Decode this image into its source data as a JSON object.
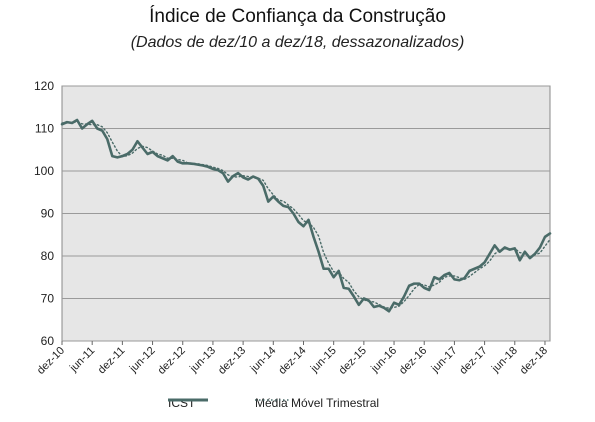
{
  "chart_data": {
    "type": "line",
    "title": "Índice de Confiança da Construção",
    "subtitle": "(Dados de dez/10 a dez/18, dessazonalizados)",
    "xlabel": "",
    "ylabel": "",
    "ylim": [
      60,
      120
    ],
    "y_ticks": [
      60,
      70,
      80,
      90,
      100,
      110,
      120
    ],
    "x_tick_labels": [
      "dez-10",
      "jun-11",
      "dez-11",
      "jun-12",
      "dez-12",
      "jun-13",
      "dez-13",
      "jun-14",
      "dez-14",
      "jun-15",
      "dez-15",
      "jun-16",
      "dez-16",
      "jun-17",
      "dez-17",
      "jun-18",
      "dez-18"
    ],
    "grid": true,
    "legend_position": "bottom",
    "colors": {
      "icst": "#4a6b68",
      "moving_average": "#4a6b68",
      "plot_background": "#e6e6e6",
      "grid": "#9a9a9a"
    },
    "series": [
      {
        "name": "ICST",
        "style": "solid",
        "values": [
          111.0,
          111.5,
          111.3,
          112.0,
          110.0,
          111.0,
          111.8,
          110.0,
          109.5,
          107.5,
          103.5,
          103.2,
          103.5,
          104.0,
          105.0,
          107.0,
          105.5,
          104.0,
          104.5,
          103.5,
          103.0,
          102.5,
          103.5,
          102.2,
          101.8,
          101.8,
          101.7,
          101.5,
          101.3,
          101.0,
          100.5,
          100.2,
          99.5,
          97.5,
          98.8,
          99.5,
          98.5,
          98.0,
          98.7,
          98.2,
          96.5,
          92.8,
          94.0,
          92.8,
          91.8,
          91.5,
          90.0,
          88.0,
          87.0,
          88.5,
          84.5,
          81.0,
          77.0,
          77.0,
          75.0,
          76.5,
          72.5,
          72.3,
          70.5,
          68.5,
          70.0,
          69.5,
          68.0,
          68.3,
          67.8,
          67.0,
          69.0,
          68.5,
          70.5,
          73.0,
          73.5,
          73.5,
          72.5,
          72.0,
          75.0,
          74.5,
          75.5,
          76.0,
          74.5,
          74.3,
          74.8,
          76.5,
          77.0,
          77.5,
          78.5,
          80.5,
          82.5,
          81.0,
          82.0,
          81.5,
          81.8,
          79.0,
          81.0,
          79.5,
          80.5,
          82.0,
          84.5,
          85.3
        ]
      },
      {
        "name": "Média Móvel Trimestral",
        "style": "dotted",
        "values": [
          111.3,
          111.3,
          111.4,
          111.6,
          111.1,
          111.0,
          110.9,
          110.9,
          110.4,
          109.0,
          106.8,
          104.7,
          103.4,
          103.6,
          104.2,
          105.3,
          105.8,
          105.5,
          104.7,
          104.0,
          103.7,
          103.0,
          103.0,
          102.7,
          102.5,
          101.9,
          101.8,
          101.7,
          101.5,
          101.3,
          100.9,
          100.6,
          100.1,
          99.1,
          98.6,
          98.6,
          98.9,
          98.7,
          98.4,
          98.3,
          97.8,
          95.8,
          94.4,
          93.2,
          92.9,
          92.0,
          91.1,
          89.8,
          88.3,
          87.8,
          86.7,
          84.7,
          80.8,
          78.3,
          76.3,
          76.2,
          74.7,
          73.8,
          71.8,
          70.4,
          69.7,
          69.3,
          69.2,
          68.6,
          68.0,
          67.7,
          67.9,
          68.2,
          69.3,
          70.7,
          72.3,
          73.3,
          73.2,
          72.7,
          73.2,
          73.8,
          75.0,
          75.3,
          75.3,
          74.9,
          74.5,
          75.2,
          76.1,
          77.0,
          77.7,
          78.8,
          80.5,
          81.3,
          81.8,
          81.5,
          81.8,
          80.8,
          80.6,
          79.8,
          80.3,
          80.7,
          82.3,
          83.9
        ]
      }
    ]
  }
}
